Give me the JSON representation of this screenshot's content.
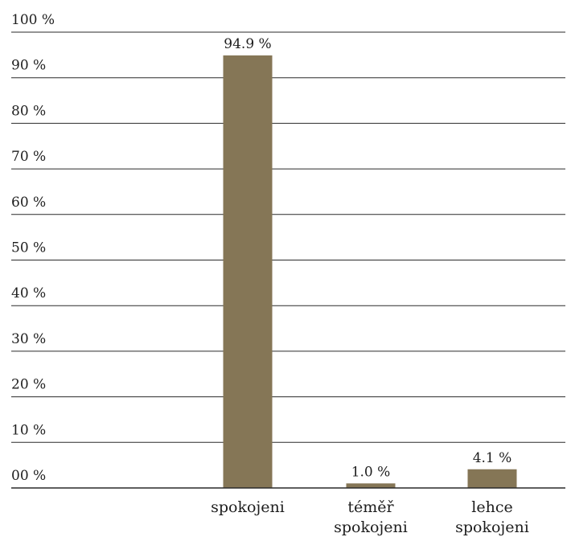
{
  "chart_data": {
    "type": "bar",
    "title": "",
    "xlabel": "",
    "ylabel": "",
    "ylim": [
      0,
      100
    ],
    "y_ticks": [
      0,
      10,
      20,
      30,
      40,
      50,
      60,
      70,
      80,
      90,
      100
    ],
    "y_tick_labels": [
      "00 %",
      "10 %",
      "20 %",
      "30 %",
      "40 %",
      "50 %",
      "60 %",
      "70 %",
      "80 %",
      "90 %",
      "100 %"
    ],
    "categories": [
      [
        "spokojeni"
      ],
      [
        "téměř",
        "spokojeni"
      ],
      [
        "lehce",
        "spokojeni"
      ]
    ],
    "values": [
      94.9,
      1.0,
      4.1
    ],
    "data_labels": [
      "94.9 %",
      "1.0 %",
      "4.1 %"
    ],
    "bar_color": "#857656",
    "grid": true,
    "legend": "none"
  }
}
